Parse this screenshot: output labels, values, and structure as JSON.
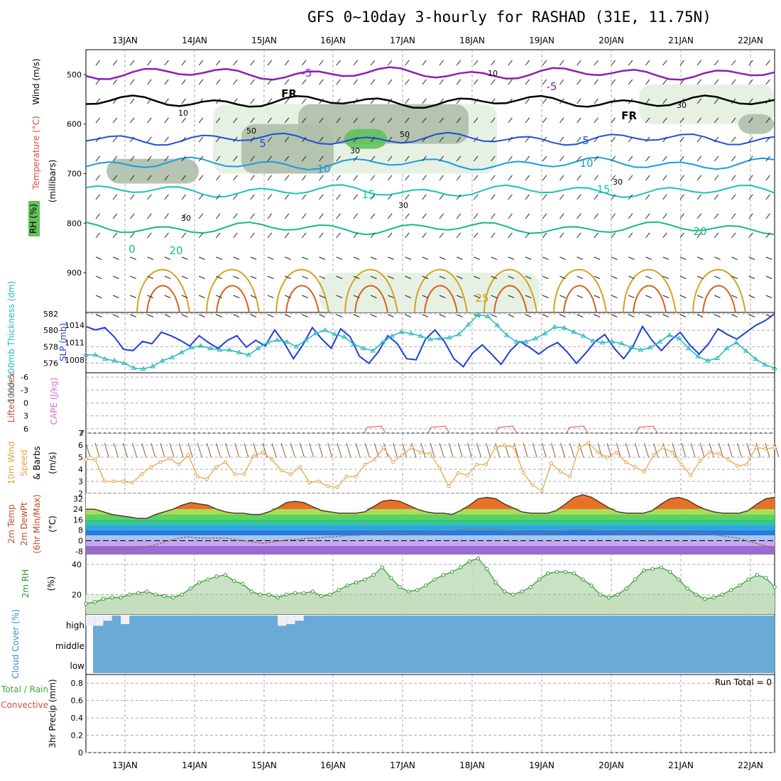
{
  "header": {
    "title": "GFS 0~10day 3-hourly for RASHAD (31E, 11.75N)"
  },
  "colors": {
    "isotherm_minus5": "#8b1fb5",
    "isotherm_fr": "#000000",
    "isotherm_5": "#1f4fe0",
    "isotherm_10": "#1a9be0",
    "isotherm_15": "#19c4b4",
    "isotherm_20": "#16b88a",
    "isotherm_25": "#d6a020",
    "isotherm_30": "#d6601a",
    "rh_light": "#e3efe0",
    "rh_mid": "#aebfa8",
    "rh_high": "#62c25c",
    "slp": "#1f3fd8",
    "thickness": "#24b8c0",
    "wind10m": "#e8a040",
    "temp_fill": "#e45e1a",
    "dewpoint": "#a06a4a",
    "rh2m": "#2e9a2e",
    "cloud": "#6aaad6",
    "cloud_clear": "#f2eef5",
    "cape": "#e84848"
  },
  "chart_data": [
    {
      "type": "heatmap",
      "panel": "upper-air",
      "ylabel_parts": [
        "Wind (m/s)",
        "Temperature (°C)",
        "RH (%)",
        "(millibars)"
      ],
      "y_ticks": [
        500,
        600,
        700,
        800,
        900
      ],
      "ylim": [
        450,
        980
      ],
      "x_ticks": [
        "13JAN",
        "14JAN",
        "15JAN",
        "16JAN",
        "17JAN",
        "18JAN",
        "19JAN",
        "20JAN",
        "21JAN",
        "22JAN"
      ],
      "isotherm_labels": [
        "-5",
        "-5",
        "FR",
        "FR",
        "5",
        "5",
        "10",
        "10",
        "15",
        "15",
        "20",
        "20",
        "25",
        "0"
      ],
      "rh_labels": [
        "10",
        "30",
        "50",
        "30",
        "30",
        "50",
        "30",
        "10",
        "30"
      ],
      "isotherm_levels_mb": {
        "-5": 498,
        "FR": 555,
        "5": 630,
        "10": 680,
        "15": 735,
        "20": 810
      }
    },
    {
      "type": "line",
      "panel": "pressure",
      "ylabel_left": "1000-500mb Thickness (dm)",
      "ylabel_right": "SLP (mb)",
      "left_ticks": [
        576,
        578,
        580,
        582
      ],
      "right_ticks": [
        1008,
        1011,
        1014
      ],
      "series": [
        {
          "name": "SLP",
          "unit": "mb",
          "values": [
            1013.8,
            1013.2,
            1013.6,
            1012.0,
            1009.8,
            1009.6,
            1011.2,
            1010.8,
            1012.8,
            1012.2,
            1011.4,
            1010.4,
            1012.2,
            1011.0,
            1010.0,
            1011.4,
            1012.2,
            1010.2,
            1011.4,
            1010.4,
            1013.2,
            1011.0,
            1008.2,
            1010.6,
            1013.6,
            1011.6,
            1010.0,
            1013.4,
            1012.0,
            1008.6,
            1007.4,
            1009.4,
            1012.2,
            1010.8,
            1008.2,
            1008.0,
            1011.6,
            1013.2,
            1011.2,
            1008.2,
            1006.8,
            1009.2,
            1010.6,
            1009.0,
            1007.2,
            1009.6,
            1011.2,
            1010.2,
            1009.0,
            1010.2,
            1011.0,
            1009.4,
            1007.4,
            1009.2,
            1011.2,
            1012.4,
            1010.0,
            1008.2,
            1010.4,
            1013.8,
            1011.4,
            1009.6,
            1011.4,
            1012.8,
            1010.6,
            1009.0,
            1010.8,
            1013.4,
            1012.4,
            1011.6,
            1012.8,
            1014.0,
            1014.8,
            1016.0
          ]
        },
        {
          "name": "Thickness",
          "unit": "dm",
          "values": [
            577.0,
            577.0,
            576.5,
            576.3,
            576.0,
            575.4,
            575.3,
            575.6,
            576.3,
            576.7,
            577.3,
            577.9,
            578.1,
            577.8,
            577.6,
            577.6,
            577.3,
            577.0,
            577.8,
            578.5,
            578.8,
            578.6,
            578.0,
            578.8,
            579.6,
            580.0,
            579.5,
            579.2,
            578.3,
            577.8,
            577.5,
            578.5,
            579.3,
            579.8,
            579.6,
            579.3,
            578.9,
            579.0,
            579.1,
            579.5,
            580.7,
            581.9,
            581.7,
            580.6,
            579.4,
            578.6,
            578.6,
            579.0,
            579.6,
            580.4,
            580.3,
            579.8,
            579.3,
            578.7,
            578.5,
            578.6,
            578.4,
            577.9,
            577.6,
            577.9,
            578.6,
            579.4,
            579.0,
            577.8,
            576.8,
            576.3,
            576.6,
            577.8,
            578.5,
            577.5,
            576.5,
            575.8,
            575.4
          ]
        }
      ]
    },
    {
      "type": "line",
      "panel": "stability",
      "ylabel_left": "Lifted Index",
      "ylabel_right": "CAPE (J/kg)",
      "left_ticks": [
        "6",
        "3",
        "0",
        "-3",
        "-6"
      ],
      "right_ticks": [
        "7"
      ],
      "cape_bumps": [
        "17JAN",
        "18JAN",
        "19JAN",
        "20JAN",
        "21JAN"
      ]
    },
    {
      "type": "line",
      "panel": "wind10m",
      "ylabel_parts": [
        "10m Wind",
        "Speed",
        "& Barbs",
        "(m/s)"
      ],
      "y_ticks": [
        2,
        3,
        4,
        5,
        6,
        7
      ],
      "ylim": [
        2,
        7
      ],
      "series": [
        {
          "name": "10m Wind Speed",
          "values": [
            4.8,
            4.8,
            3.0,
            3.0,
            3.0,
            2.9,
            3.6,
            4.2,
            4.6,
            4.9,
            4.4,
            5.2,
            3.4,
            3.2,
            4.2,
            4.6,
            3.6,
            3.6,
            5.1,
            5.4,
            4.8,
            3.9,
            3.6,
            4.2,
            2.9,
            3.0,
            2.6,
            2.5,
            3.4,
            3.4,
            4.4,
            4.8,
            5.8,
            4.6,
            5.2,
            5.8,
            5.4,
            5.3,
            4.1,
            2.6,
            3.7,
            3.5,
            4.4,
            4.4,
            5.8,
            6.0,
            5.8,
            3.7,
            2.7,
            2.2,
            4.5,
            3.8,
            3.4,
            5.8,
            6.2,
            5.4,
            5.0,
            5.4,
            4.6,
            4.2,
            3.8,
            5.2,
            5.8,
            5.4,
            4.4,
            3.5,
            4.7,
            5.4,
            5.3,
            4.8,
            4.3,
            4.4,
            5.8,
            5.7,
            5.8
          ]
        }
      ]
    },
    {
      "type": "area",
      "panel": "temperature",
      "ylabel_parts": [
        "2m Temp",
        "2m DewPt",
        "(6hr Min/Max)",
        "(°C)"
      ],
      "y_ticks": [
        32,
        24,
        16,
        8,
        0,
        -8
      ],
      "ylim": [
        -10,
        36
      ],
      "series": [
        {
          "name": "2m Temp",
          "values": [
            24,
            24,
            22,
            20,
            19,
            18,
            17,
            17,
            20,
            22,
            24,
            27,
            29,
            28,
            27,
            24,
            22,
            21,
            21,
            20,
            20,
            22,
            25,
            29,
            30,
            29,
            26,
            23,
            22,
            21,
            21,
            21,
            22,
            26,
            30,
            31,
            30,
            27,
            24,
            22,
            21,
            21,
            20,
            23,
            27,
            32,
            33,
            32,
            28,
            25,
            22,
            21,
            21,
            21,
            23,
            28,
            33,
            35,
            33,
            29,
            25,
            22,
            21,
            21,
            21,
            23,
            28,
            32,
            33,
            31,
            27,
            24,
            22,
            21,
            21,
            21,
            23,
            28,
            32,
            33
          ]
        },
        {
          "name": "2m DewPt",
          "values": [
            -6,
            -6,
            -6,
            -6,
            -6,
            -6,
            -5,
            -4,
            -2,
            0,
            2,
            3,
            2,
            2,
            2,
            2,
            1,
            0,
            -1,
            -2,
            -1,
            0,
            1,
            1,
            2,
            2,
            3,
            3,
            4,
            4,
            5,
            5,
            6,
            6,
            6,
            5,
            5,
            5,
            6,
            7,
            8,
            9,
            9,
            9,
            9,
            8,
            7,
            6,
            6,
            6,
            7,
            7,
            8,
            8,
            8,
            7,
            7,
            6,
            6,
            6,
            6,
            6,
            7,
            7,
            7,
            6,
            6,
            5,
            4,
            3,
            2,
            0,
            -2,
            -4,
            -6
          ]
        }
      ]
    },
    {
      "type": "area",
      "panel": "rh2m",
      "ylabel_parts": [
        "2m RH",
        "(%)"
      ],
      "y_ticks": [
        40,
        20
      ],
      "ylim": [
        7,
        47
      ],
      "series": [
        {
          "name": "2m RH",
          "values": [
            14,
            15,
            17,
            18,
            18,
            20,
            21,
            22,
            20,
            19,
            18,
            20,
            24,
            28,
            30,
            32,
            33,
            29,
            27,
            22,
            20,
            20,
            18,
            20,
            21,
            21,
            22,
            19,
            20,
            23,
            26,
            28,
            30,
            33,
            38,
            31,
            25,
            22,
            23,
            26,
            30,
            33,
            35,
            38,
            42,
            44,
            37,
            28,
            22,
            20,
            22,
            25,
            30,
            34,
            35,
            35,
            34,
            30,
            26,
            20,
            18,
            20,
            24,
            30,
            36,
            37,
            38,
            35,
            30,
            24,
            20,
            17,
            18,
            20,
            23,
            26,
            30,
            33,
            31,
            25
          ]
        }
      ]
    },
    {
      "type": "bar",
      "panel": "cloud",
      "ylabel": "Cloud Cover (%)",
      "y_ticks": [
        "high",
        "middle",
        "low"
      ],
      "series": [
        {
          "name": "high cloud clear fraction",
          "values": [
            0.6,
            0.6,
            0.3,
            0.0,
            0.5,
            0.0,
            0.0,
            0.0,
            0.0,
            0.0,
            0.0,
            0.0,
            0.0,
            0.0,
            0.0,
            0.0,
            0.0,
            0.0,
            0.0,
            0.0,
            0.0,
            0.0,
            0.6,
            0.5,
            0.3,
            0.0,
            0.0,
            0.0,
            0.0,
            0.0,
            0.0,
            0.0,
            0.0,
            0.0,
            0.0,
            0.0,
            0.0,
            0.0,
            0.0,
            0.0,
            0.0,
            0.0,
            0.0,
            0.0,
            0.0,
            0.0,
            0.0,
            0.0,
            0.0,
            0.0,
            0.0,
            0.0,
            0.0,
            0.0,
            0.0,
            0.0,
            0.0,
            0.0,
            0.0,
            0.0,
            0.0,
            0.0,
            0.0,
            0.0,
            0.0,
            0.0,
            0.0,
            0.0,
            0.0,
            0.0,
            0.0,
            0.0,
            0.0,
            0.0,
            0.0,
            0.0,
            0.0,
            0.0,
            0.0,
            0.0
          ]
        }
      ]
    },
    {
      "type": "bar",
      "panel": "precip",
      "ylabel_parts": [
        "Total / Rain",
        "Convective",
        "3hr Precip (mm)"
      ],
      "y_ticks": [
        "0.8",
        "0.6",
        "0.4",
        "0.2",
        "0"
      ],
      "ylim": [
        0,
        0.9
      ],
      "annotation": "Run Total = 0",
      "values": []
    }
  ]
}
